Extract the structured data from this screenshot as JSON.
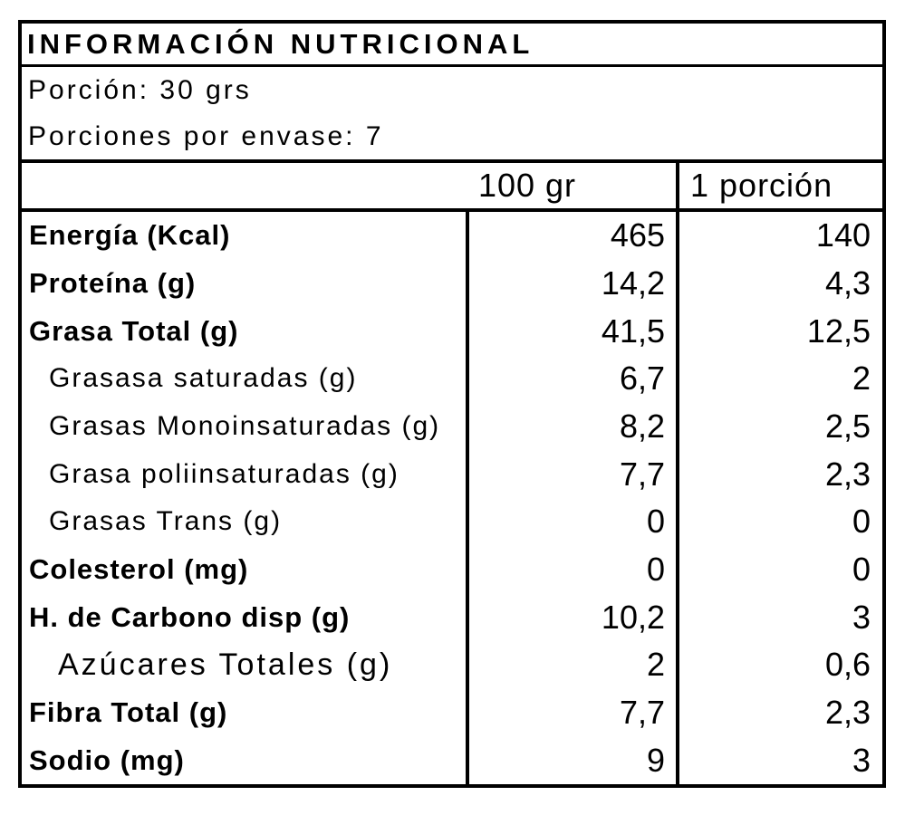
{
  "title": "INFORMACIÓN NUTRICIONAL",
  "serving_info": {
    "portion": "Porción: 30 grs",
    "portions_per_package": "Porciones por envase: 7"
  },
  "columns": {
    "per_100": "100 gr",
    "per_portion": "1 porción"
  },
  "rows": [
    {
      "label": "Energía (Kcal)",
      "per_100": "465",
      "per_portion": "140"
    },
    {
      "label": "Proteína (g)",
      "per_100": "14,2",
      "per_portion": "4,3"
    },
    {
      "label": "Grasa Total (g)",
      "per_100": "41,5",
      "per_portion": "12,5"
    },
    {
      "label": "Grasasa saturadas (g)",
      "per_100": "6,7",
      "per_portion": "2"
    },
    {
      "label": "Grasas Monoinsaturadas (g)",
      "per_100": "8,2",
      "per_portion": "2,5"
    },
    {
      "label": "Grasa poliinsaturadas (g)",
      "per_100": "7,7",
      "per_portion": "2,3"
    },
    {
      "label": "Grasas Trans (g)",
      "per_100": "0",
      "per_portion": "0"
    },
    {
      "label": "Colesterol (mg)",
      "per_100": "0",
      "per_portion": "0"
    },
    {
      "label": "H. de Carbono disp (g)",
      "per_100": "10,2",
      "per_portion": "3"
    },
    {
      "label": "Azúcares Totales (g)",
      "per_100": "2",
      "per_portion": "0,6"
    },
    {
      "label": "Fibra Total (g)",
      "per_100": "7,7",
      "per_portion": "2,3"
    },
    {
      "label": "Sodio (mg)",
      "per_100": "9",
      "per_portion": "3"
    }
  ],
  "colors": {
    "border": "#000000",
    "background": "#ffffff",
    "text": "#000000"
  }
}
